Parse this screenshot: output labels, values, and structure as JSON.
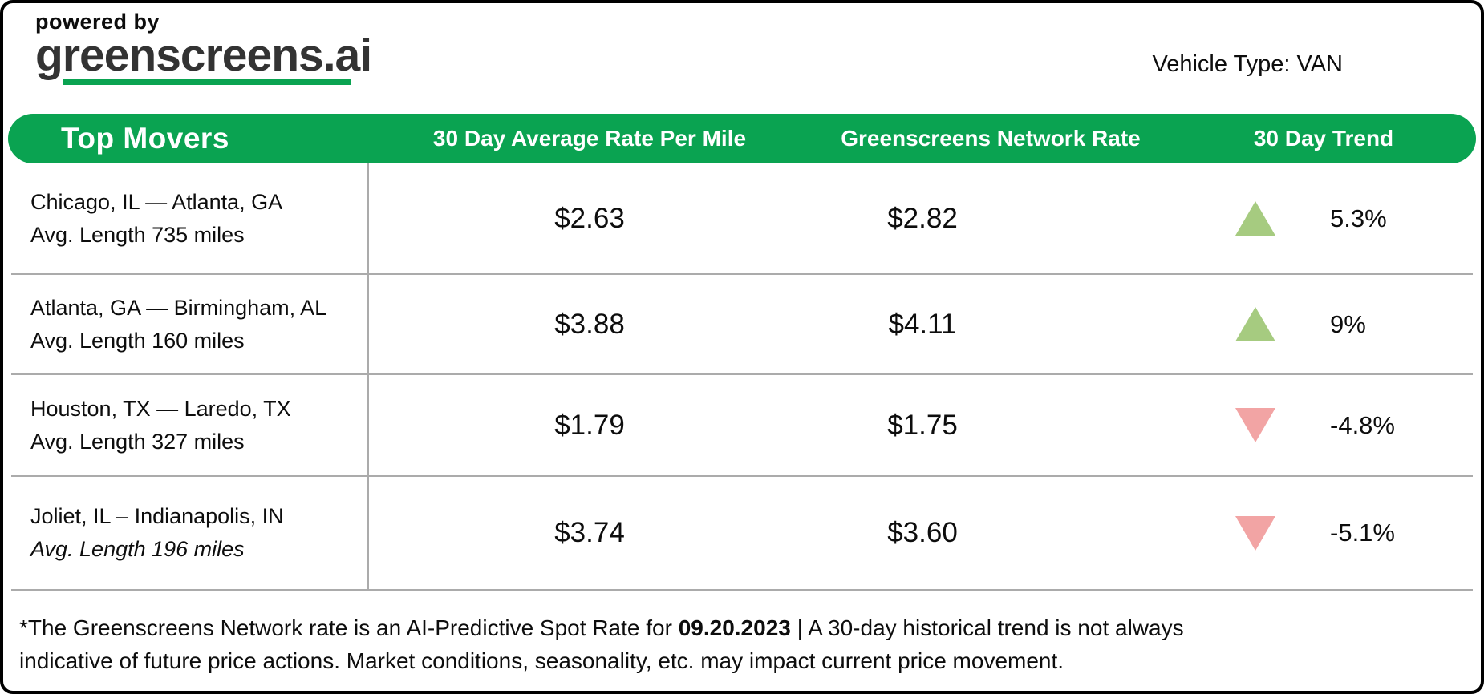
{
  "brand": {
    "powered_by": "powered by",
    "name": "greenscreens.ai"
  },
  "vehicle_type_label": "Vehicle Type: VAN",
  "colors": {
    "green": "#0AA351",
    "up": "#A6CB80",
    "down": "#F2A4A4",
    "grid": "#ABABAB"
  },
  "table": {
    "title": "Top Movers",
    "headers": [
      "30 Day Average Rate Per Mile",
      "Greenscreens Network Rate",
      "30 Day Trend"
    ],
    "rows": [
      {
        "route": "Chicago, IL — Atlanta, GA",
        "length_note": "Avg. Length 735 miles",
        "length_italic": false,
        "avg_rate": "$2.63",
        "network_rate": "$2.82",
        "trend_direction": "up",
        "trend_pct": "5.3%"
      },
      {
        "route": "Atlanta, GA — Birmingham, AL",
        "length_note": "Avg. Length 160 miles",
        "length_italic": false,
        "avg_rate": "$3.88",
        "network_rate": "$4.11",
        "trend_direction": "up",
        "trend_pct": "9%"
      },
      {
        "route": "Houston, TX — Laredo, TX",
        "length_note": "Avg. Length 327 miles",
        "length_italic": false,
        "avg_rate": "$1.79",
        "network_rate": "$1.75",
        "trend_direction": "down",
        "trend_pct": "-4.8%"
      },
      {
        "route": "Joliet, IL – Indianapolis, IN",
        "length_note": "Avg. Length 196 miles",
        "length_italic": true,
        "avg_rate": "$3.74",
        "network_rate": "$3.60",
        "trend_direction": "down",
        "trend_pct": "-5.1%"
      }
    ]
  },
  "footnote": {
    "prefix": "*The Greenscreens Network rate is an AI-Predictive Spot Rate for ",
    "date": "09.20.2023",
    "suffix": " | A 30-day historical trend is not always indicative of future price actions. Market conditions, seasonality, etc. may impact current price movement."
  },
  "chart_data": {
    "type": "table",
    "title": "Top Movers",
    "columns": [
      "Top Movers",
      "30 Day Average Rate Per Mile",
      "Greenscreens Network Rate",
      "30 Day Trend"
    ],
    "rows": [
      {
        "route": "Chicago, IL — Atlanta, GA",
        "avg_length_miles": 735,
        "avg_rate_per_mile": 2.63,
        "network_rate": 2.82,
        "trend_pct": 5.3
      },
      {
        "route": "Atlanta, GA — Birmingham, AL",
        "avg_length_miles": 160,
        "avg_rate_per_mile": 3.88,
        "network_rate": 4.11,
        "trend_pct": 9
      },
      {
        "route": "Houston, TX — Laredo, TX",
        "avg_length_miles": 327,
        "avg_rate_per_mile": 1.79,
        "network_rate": 1.75,
        "trend_pct": -4.8
      },
      {
        "route": "Joliet, IL – Indianapolis, IN",
        "avg_length_miles": 196,
        "avg_rate_per_mile": 3.74,
        "network_rate": 3.6,
        "trend_pct": -5.1
      }
    ]
  }
}
